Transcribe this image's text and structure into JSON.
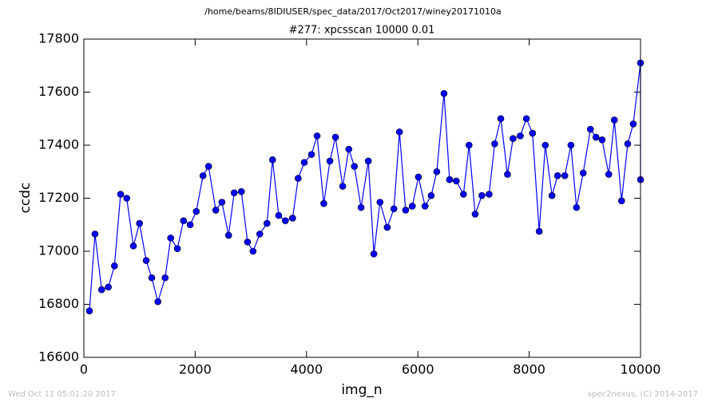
{
  "chart_data": {
    "type": "line",
    "suptitle": "/home/beams/8IDIUSER/spec_data/2017/Oct2017/winey20171010a",
    "title": "#277: xpcsscan 10000 0.01",
    "x_label": "img_n",
    "y_label": "ccdc",
    "footer_left": "Wed Oct 11 05:01:20 2017",
    "footer_right": "spec2nexus, (C) 2014-2017",
    "x": [
      100,
      200,
      320,
      440,
      550,
      660,
      770,
      890,
      1000,
      1120,
      1220,
      1330,
      1460,
      1560,
      1680,
      1790,
      1910,
      2020,
      2140,
      2240,
      2370,
      2480,
      2600,
      2700,
      2830,
      2940,
      3040,
      3160,
      3290,
      3390,
      3500,
      3620,
      3750,
      3850,
      3960,
      4090,
      4190,
      4310,
      4420,
      4520,
      4650,
      4760,
      4860,
      4980,
      5110,
      5210,
      5320,
      5450,
      5570,
      5670,
      5780,
      5900,
      6010,
      6130,
      6240,
      6340,
      6470,
      6570,
      6690,
      6820,
      6920,
      7030,
      7150,
      7280,
      7380,
      7490,
      7610,
      7710,
      7840,
      7950,
      8060,
      8180,
      8290,
      8410,
      8510,
      8640,
      8750,
      8850,
      8970,
      9100,
      9200,
      9310,
      9430,
      9530,
      9660,
      9770,
      9870,
      10000,
      10000
    ],
    "series": [
      {
        "name": "ccdc",
        "color": "#0000ff",
        "values": [
          16775,
          17065,
          16855,
          16865,
          16945,
          17215,
          17200,
          17020,
          17105,
          16965,
          16900,
          16810,
          16900,
          17050,
          17010,
          17115,
          17100,
          17150,
          17285,
          17320,
          17155,
          17185,
          17060,
          17220,
          17225,
          17035,
          17000,
          17065,
          17105,
          17345,
          17135,
          17115,
          17125,
          17275,
          17335,
          17365,
          17435,
          17180,
          17340,
          17430,
          17245,
          17385,
          17320,
          17165,
          17340,
          16990,
          17185,
          17090,
          17160,
          17450,
          17155,
          17170,
          17280,
          17170,
          17210,
          17300,
          17595,
          17270,
          17265,
          17215,
          17400,
          17140,
          17210,
          17215,
          17405,
          17500,
          17290,
          17425,
          17435,
          17500,
          17445,
          17075,
          17400,
          17210,
          17285,
          17285,
          17400,
          17165,
          17295,
          17460,
          17430,
          17420,
          17290,
          17495,
          17190,
          17405,
          17480,
          17710,
          17270
        ]
      }
    ],
    "xlim": [
      0,
      10000
    ],
    "xticks": [
      0,
      2000,
      4000,
      6000,
      8000,
      10000
    ],
    "ylim": [
      16600,
      17800
    ],
    "yticks": [
      16600,
      16800,
      17000,
      17200,
      17400,
      17600,
      17800
    ],
    "grid": false
  }
}
